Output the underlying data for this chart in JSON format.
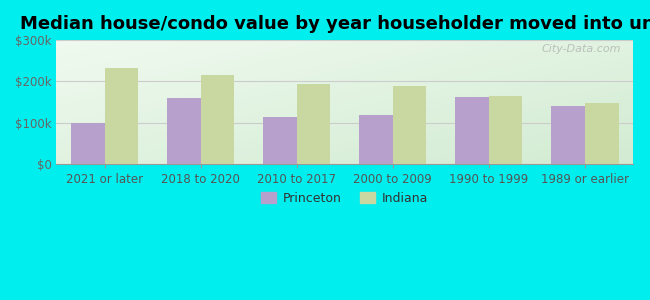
{
  "title": "Median house/condo value by year householder moved into unit",
  "categories": [
    "2021 or later",
    "2018 to 2020",
    "2010 to 2017",
    "2000 to 2009",
    "1990 to 1999",
    "1989 or earlier"
  ],
  "princeton_values": [
    100000,
    160000,
    115000,
    118000,
    163000,
    140000
  ],
  "indiana_values": [
    232000,
    215000,
    193000,
    188000,
    165000,
    148000
  ],
  "princeton_color": "#b8a0cc",
  "indiana_color": "#c8d8a0",
  "background_color": "#00eeee",
  "ylim": [
    0,
    300000
  ],
  "yticks": [
    0,
    100000,
    200000,
    300000
  ],
  "ytick_labels": [
    "$0",
    "$100k",
    "$200k",
    "$300k"
  ],
  "bar_width": 0.35,
  "legend_labels": [
    "Princeton",
    "Indiana"
  ],
  "watermark": "City-Data.com",
  "title_fontsize": 13,
  "tick_fontsize": 8.5
}
